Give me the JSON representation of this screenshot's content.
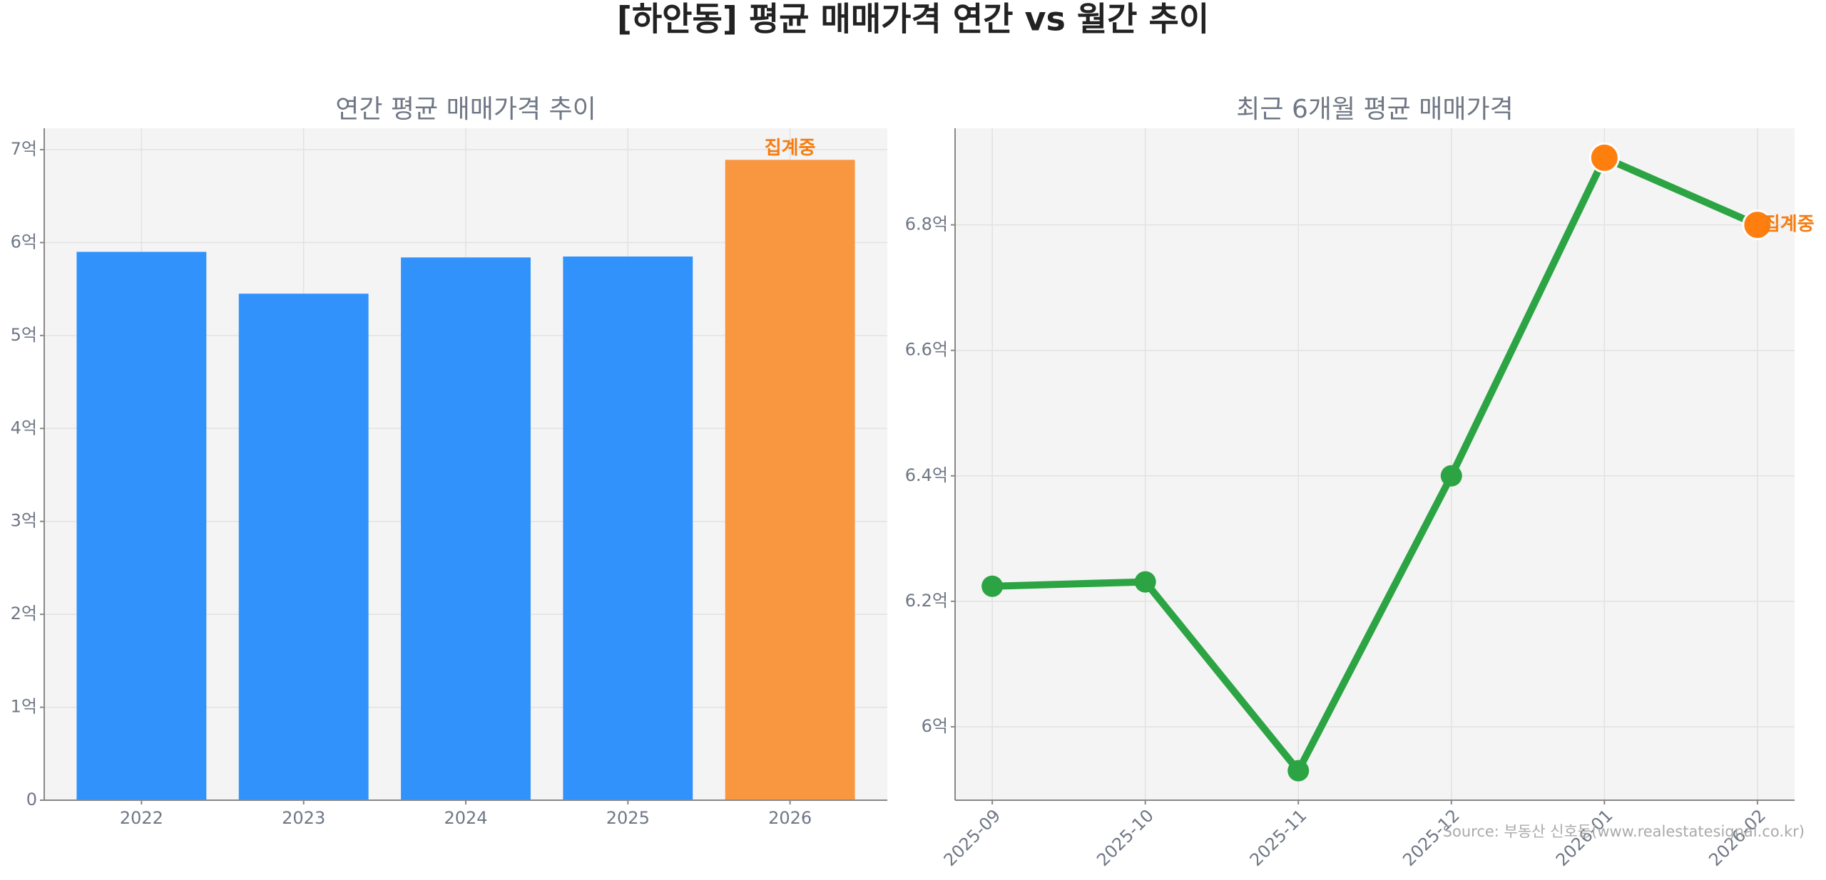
{
  "title": "[하안동] 평균 매매가격 연간 vs 월간 추이",
  "source": "Source: 부동산 신호등(www.realestatesignal.co.kr)",
  "chart_data": [
    {
      "type": "bar",
      "title": "연간 평균 매매가격 추이",
      "categories": [
        "2022",
        "2023",
        "2024",
        "2025",
        "2026"
      ],
      "values": [
        5.9,
        5.45,
        5.84,
        5.85,
        6.89
      ],
      "colors": [
        "#3192fc",
        "#3192fc",
        "#3192fc",
        "#3192fc",
        "#f99640"
      ],
      "annotation": "집계중",
      "annotation_color": "#f57c12",
      "ylim": [
        0,
        7.23
      ],
      "yticks": [
        0,
        {
          "value": 1,
          "label": "1억"
        },
        {
          "value": 2,
          "label": "2억"
        },
        {
          "value": 3,
          "label": "3억"
        },
        {
          "value": 4,
          "label": "4억"
        },
        {
          "value": 5,
          "label": "5억"
        },
        {
          "value": 6,
          "label": "6억"
        },
        {
          "value": 7,
          "label": "7억"
        }
      ],
      "grid": true
    },
    {
      "type": "line",
      "title": "최근 6개월 평균 매매가격",
      "categories": [
        "2025-09",
        "2025-10",
        "2025-11",
        "2025-12",
        "2026-01",
        "2026-02"
      ],
      "series": [
        {
          "color": "#2ca444",
          "values": [
            6.224,
            6.231,
            5.93,
            6.4,
            6.907,
            6.8
          ],
          "marker_colors": [
            "#2ca444",
            "#2ca444",
            "#2ca444",
            "#2ca444",
            "#ff7f0e",
            "#ff7f0e"
          ]
        }
      ],
      "annotation": "집계중",
      "annotation_color": "#f57c12",
      "ylim": [
        5.883,
        6.954
      ],
      "yticks": [
        {
          "value": 6,
          "label": "6억"
        },
        {
          "value": 6.2,
          "label": "6.2억"
        },
        {
          "value": 6.4,
          "label": "6.4억"
        },
        {
          "value": 6.6,
          "label": "6.6억"
        },
        {
          "value": 6.8,
          "label": "6.8억"
        }
      ],
      "grid": true
    }
  ]
}
